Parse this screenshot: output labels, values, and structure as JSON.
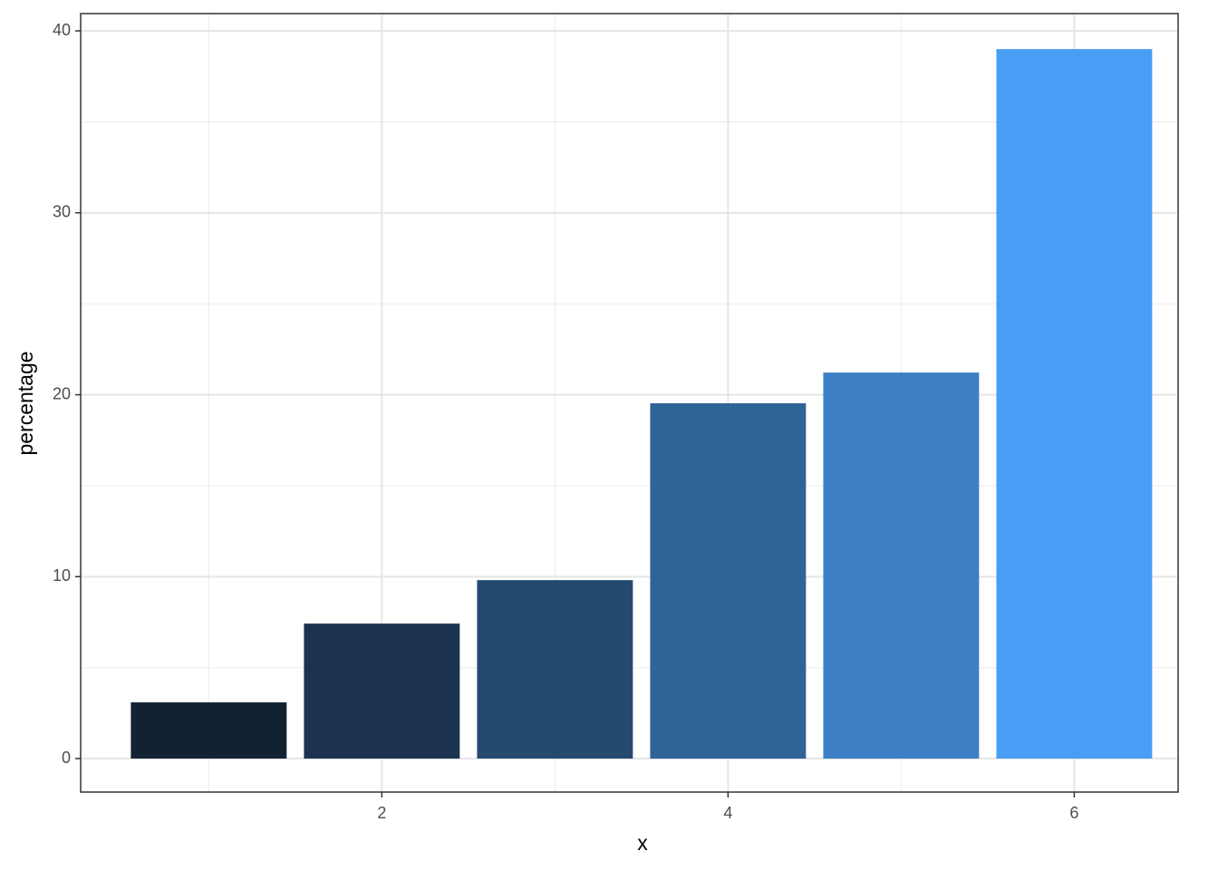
{
  "chart_data": {
    "type": "bar",
    "x_label": "x",
    "y_label": "percentage",
    "x": [
      1,
      2,
      3,
      4,
      5,
      6
    ],
    "values": [
      3.09,
      7.42,
      9.81,
      19.53,
      21.22,
      39.0
    ],
    "colors": [
      "#132233",
      "#1b3350",
      "#254a70",
      "#2f6497",
      "#3d80c5",
      "#479ef4"
    ],
    "bar_width": 0.9,
    "xlim": [
      0.26,
      6.6
    ],
    "xticks": [
      2,
      4,
      6
    ],
    "xminorticks": [
      1,
      3,
      5
    ],
    "ylim": [
      -1.84,
      40.95
    ],
    "yticks": [
      0,
      10,
      20,
      30,
      40
    ],
    "yminorticks": [
      5,
      15,
      25,
      35
    ],
    "grid": true
  }
}
